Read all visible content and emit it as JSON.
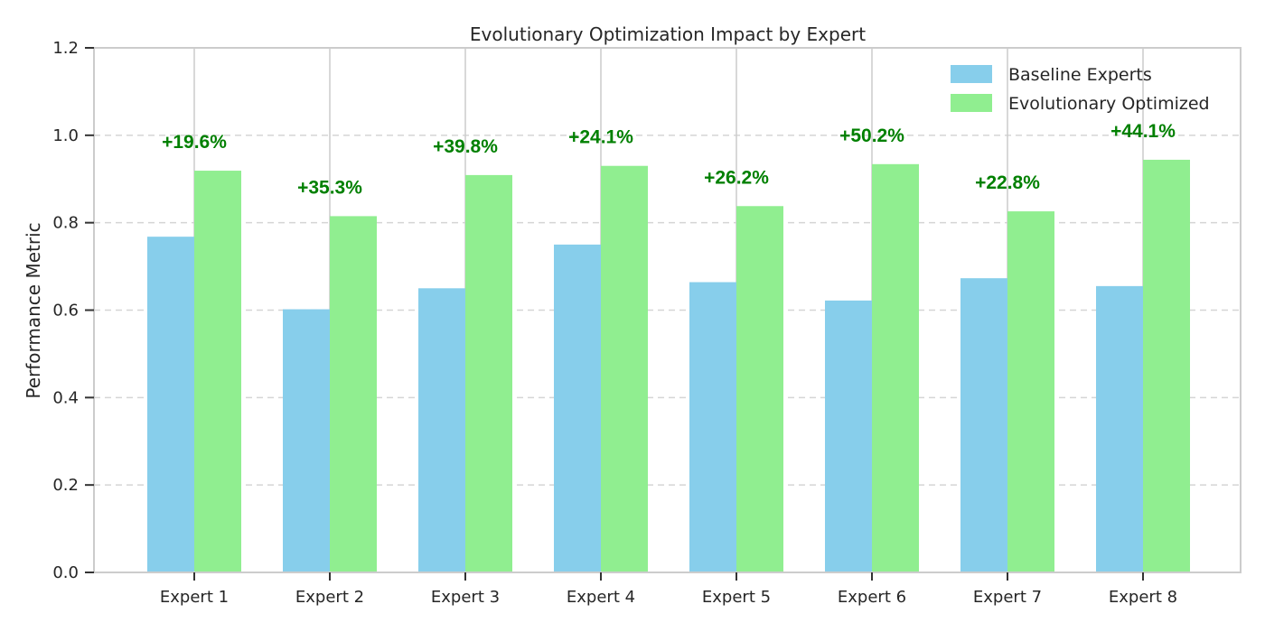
{
  "chart_data": {
    "type": "bar",
    "title": "Evolutionary Optimization Impact by Expert",
    "xlabel": "",
    "ylabel": "Performance Metric",
    "categories": [
      "Expert 1",
      "Expert 2",
      "Expert 3",
      "Expert 4",
      "Expert 5",
      "Expert 6",
      "Expert 7",
      "Expert 8"
    ],
    "series": [
      {
        "name": "Baseline Experts",
        "color": "#87CEEB",
        "values": [
          0.768,
          0.602,
          0.65,
          0.75,
          0.664,
          0.622,
          0.673,
          0.655
        ]
      },
      {
        "name": "Evolutionary Optimized",
        "color": "#90EE90",
        "values": [
          0.919,
          0.815,
          0.909,
          0.93,
          0.838,
          0.934,
          0.826,
          0.944
        ]
      }
    ],
    "annotations": [
      "+19.6%",
      "+35.3%",
      "+39.8%",
      "+24.1%",
      "+26.2%",
      "+50.2%",
      "+22.8%",
      "+44.1%"
    ],
    "annotation_color": "#008000",
    "ylim": [
      0,
      1.2
    ],
    "yticks": [
      "0.0",
      "0.2",
      "0.4",
      "0.6",
      "0.8",
      "1.0",
      "1.2"
    ],
    "grid": "y dashed, x solid",
    "legend_position": "top-right"
  }
}
